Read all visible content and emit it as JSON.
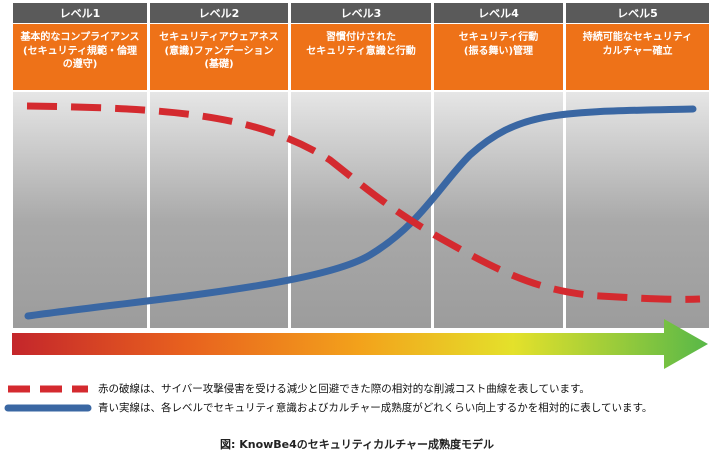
{
  "levels": [
    {
      "name": "レベル1",
      "desc": "基本的なコンプライアンス\n(セキュリティ規範・倫理\nの遵守)"
    },
    {
      "name": "レベル2",
      "desc": "セキュリティアウェアネス\n(意識)ファンデーション\n(基礎)"
    },
    {
      "name": "レベル3",
      "desc": "習慣付けされた\nセキュリティ意識と行動"
    },
    {
      "name": "レベル4",
      "desc": "セキュリティ行動\n(振る舞い)管理"
    },
    {
      "name": "レベル5",
      "desc": "持続可能なセキュリティ\nカルチャー確立"
    }
  ],
  "legend": {
    "red": "赤の破線は、サイバー攻撃侵害を受ける減少と回避できた際の相対的な削減コスト曲線を表しています。",
    "blue": "青い実線は、各レベルでセキュリティ意識およびカルチャー成熟度がどれくらい向上するかを相対的に表しています。"
  },
  "caption": "図:  KnowBe4のセキュリティカルチャー成熟度モデル",
  "colors": {
    "header": "#5a5a5a",
    "description": "#ee7218",
    "cost_curve": "#d42a2f",
    "maturity_curve": "#3a67a3"
  }
}
